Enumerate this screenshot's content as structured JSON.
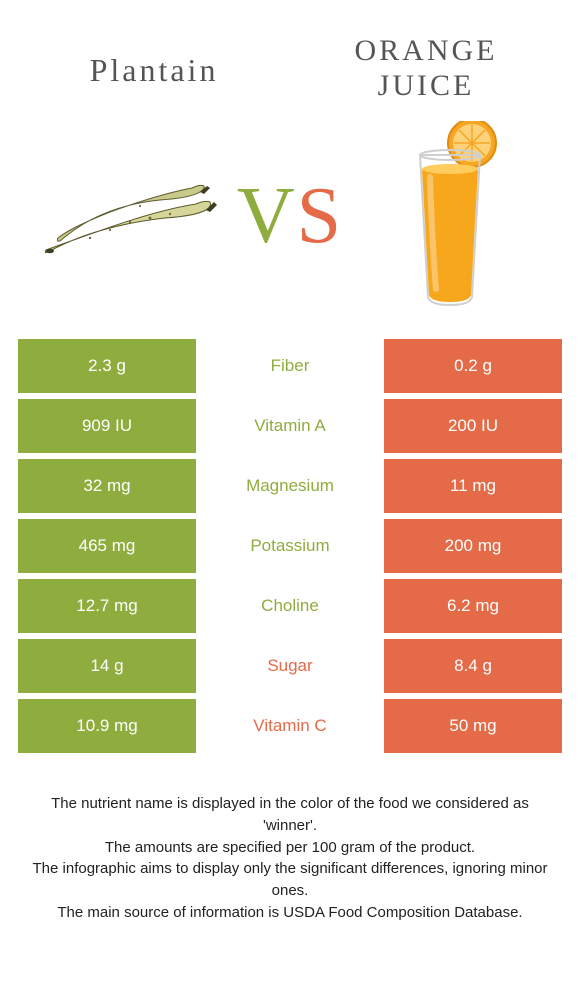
{
  "left": {
    "name": "Plantain"
  },
  "right": {
    "name_line1": "ORANGE",
    "name_line2": "JUICE"
  },
  "vs": {
    "v": "V",
    "s": "S"
  },
  "colors": {
    "left_bg": "#8fad3e",
    "right_bg": "#e46a48",
    "left_text": "#8fad3e",
    "right_text": "#e46a48",
    "v_color": "#8fad3e",
    "s_color": "#e46a48"
  },
  "rows": [
    {
      "left": "2.3 g",
      "label": "Fiber",
      "right": "0.2 g",
      "winner": "left"
    },
    {
      "left": "909 IU",
      "label": "Vitamin A",
      "right": "200 IU",
      "winner": "left"
    },
    {
      "left": "32 mg",
      "label": "Magnesium",
      "right": "11 mg",
      "winner": "left"
    },
    {
      "left": "465 mg",
      "label": "Potassium",
      "right": "200 mg",
      "winner": "left"
    },
    {
      "left": "12.7 mg",
      "label": "Choline",
      "right": "6.2 mg",
      "winner": "left"
    },
    {
      "left": "14 g",
      "label": "Sugar",
      "right": "8.4 g",
      "winner": "right"
    },
    {
      "left": "10.9 mg",
      "label": "Vitamin C",
      "right": "50 mg",
      "winner": "right"
    }
  ],
  "footnotes": [
    "The nutrient name is displayed in the color of the food we considered as 'winner'.",
    "The amounts are specified per 100 gram of the product.",
    "The infographic aims to display only the significant differences, ignoring minor ones.",
    "The main source of information is USDA Food Composition Database."
  ]
}
